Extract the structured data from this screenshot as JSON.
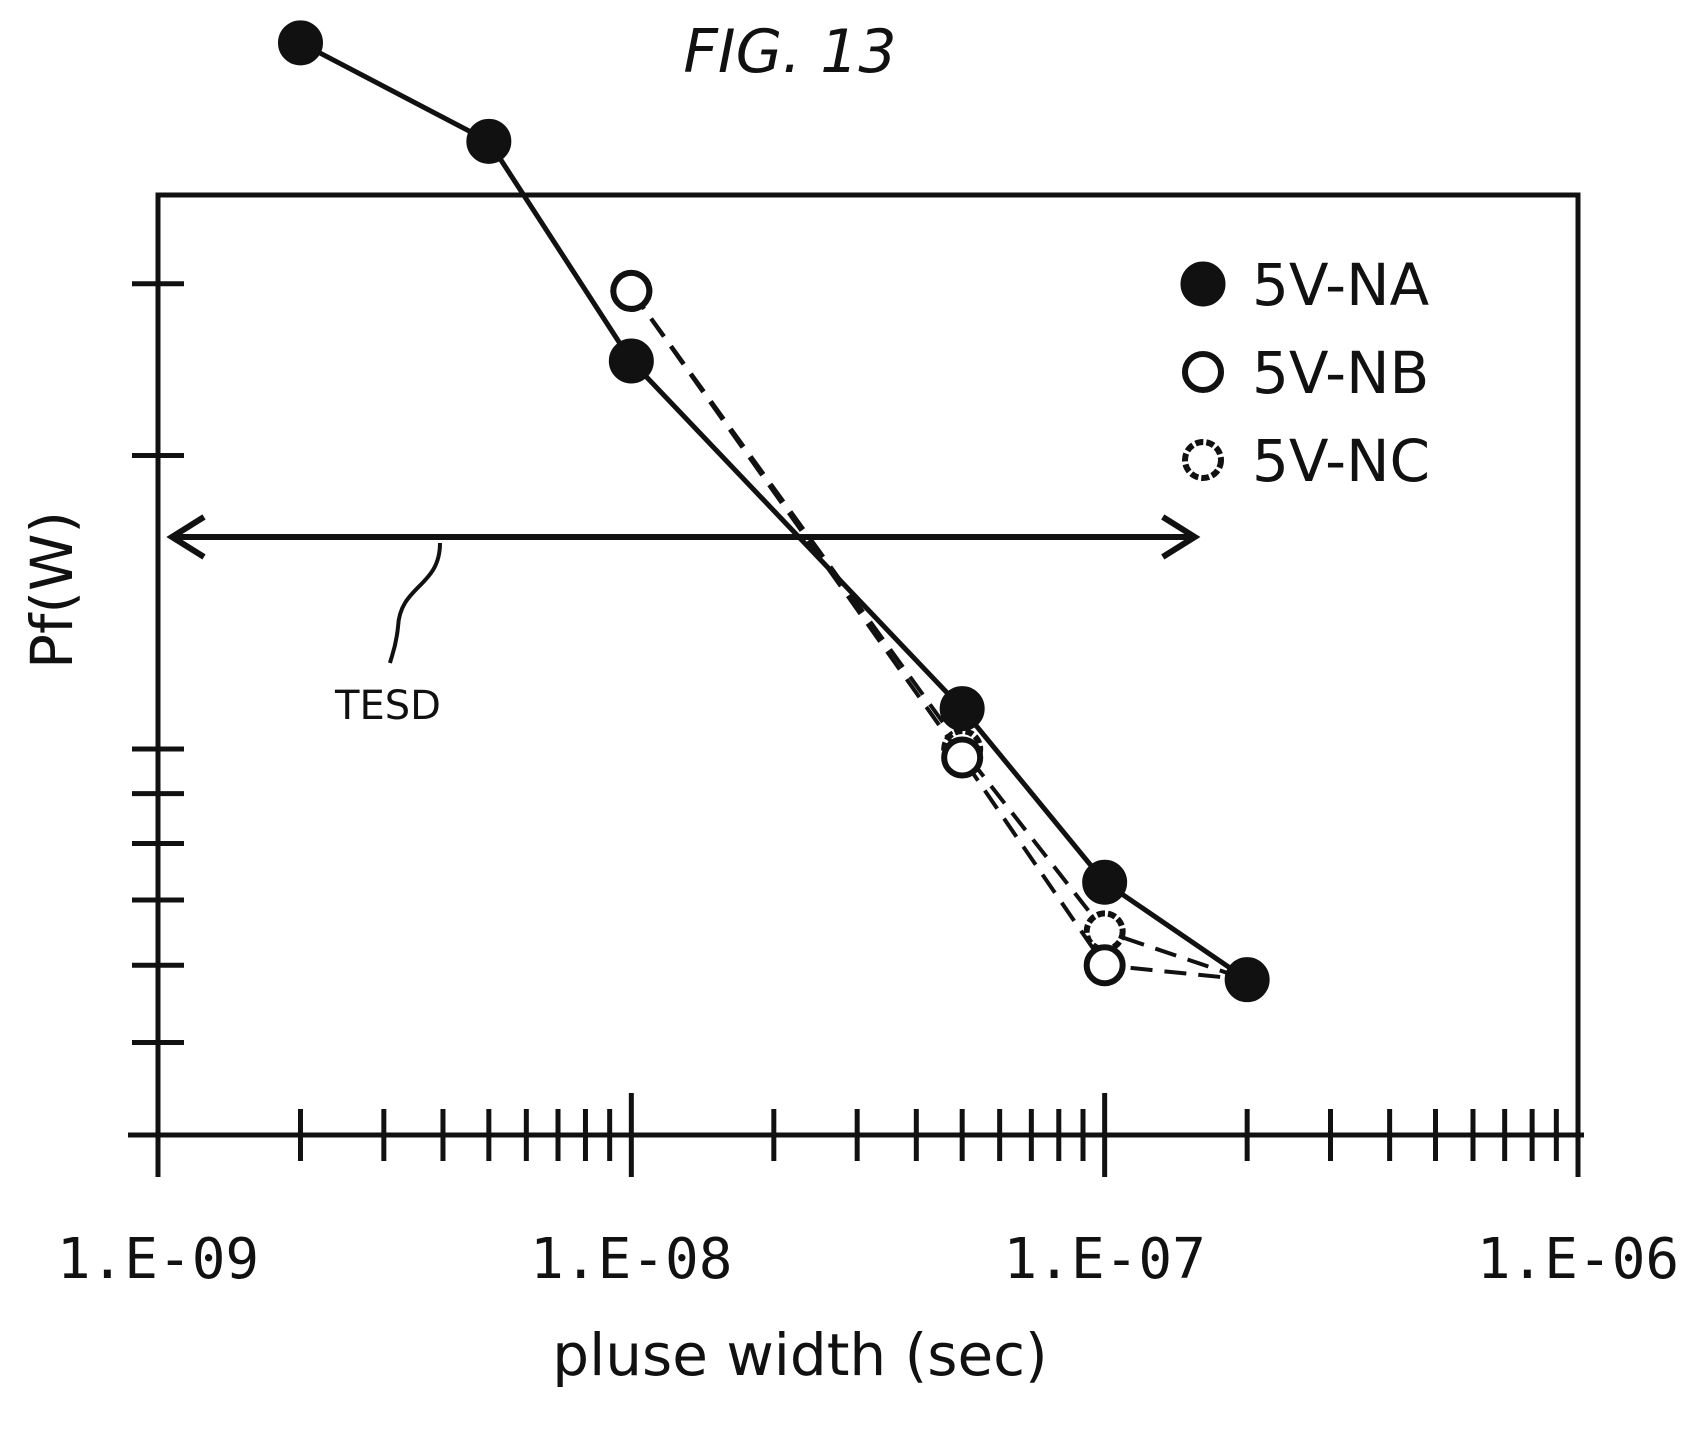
{
  "figure": {
    "label": "FIG. 13"
  },
  "chart_data": {
    "type": "line",
    "title": "",
    "xlabel": "pluse width (sec)",
    "ylabel": "Pf(W)",
    "x_scale": "log",
    "y_scale": "log",
    "xlim": [
      1e-09,
      1e-06
    ],
    "x_tick_labels": [
      "1.E-09",
      "1.E-08",
      "1.E-07",
      "1.E-06"
    ],
    "x_tick_values": [
      1e-09,
      1e-08,
      1e-07,
      1e-06
    ],
    "y_tick_labels": [],
    "y_units": "relative (no numeric tick labels shown)",
    "grid": false,
    "legend_position": "top-right",
    "series": [
      {
        "name": "5V-NA",
        "marker": "filled-circle",
        "line_style": "solid",
        "x": [
          2e-09,
          5e-09,
          1e-08,
          5e-08,
          1e-07,
          2e-07
        ],
        "y": [
          5.3,
          4.2,
          2.5,
          1.1,
          0.73,
          0.58
        ]
      },
      {
        "name": "5V-NB",
        "marker": "open-circle",
        "line_style": "dashed",
        "x": [
          1e-08,
          5e-08,
          1e-07,
          2e-07
        ],
        "y": [
          2.95,
          0.98,
          0.6,
          0.58
        ]
      },
      {
        "name": "5V-NC",
        "marker": "open-circle-dotted",
        "line_style": "dashed",
        "x": [
          1e-08,
          5e-08,
          1e-07,
          2e-07
        ],
        "y": [
          2.95,
          1.0,
          0.65,
          0.58
        ]
      }
    ],
    "annotations": [
      {
        "text": "TESD",
        "type": "double-arrow",
        "y": 1.65,
        "x_from": 1e-09,
        "x_to": 1.55e-07
      }
    ]
  }
}
